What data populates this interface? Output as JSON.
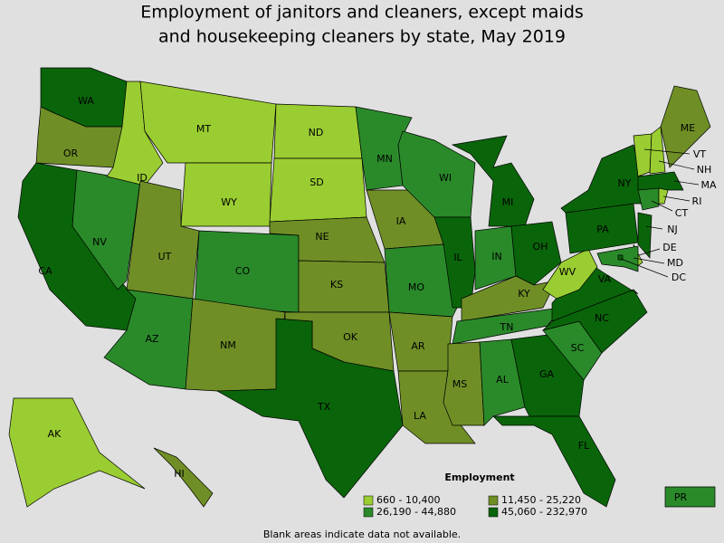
{
  "title_lines": [
    "Employment of janitors and cleaners, except maids",
    "and housekeeping cleaners by state, May 2019"
  ],
  "legend": {
    "title": "Employment",
    "items": [
      {
        "label": "660 - 10,400",
        "color": "#9acd32"
      },
      {
        "label": "11,450 - 25,220",
        "color": "#6f8f26"
      },
      {
        "label": "26,190 - 44,880",
        "color": "#2a8a2a"
      },
      {
        "label": "45,060 - 232,970",
        "color": "#0a650a"
      }
    ]
  },
  "note": "Blank areas indicate data not available.",
  "states": [
    {
      "label": "WA",
      "color": "#0a650a"
    },
    {
      "label": "OR",
      "color": "#6f8f26"
    },
    {
      "label": "CA",
      "color": "#0a650a"
    },
    {
      "label": "NV",
      "color": "#2a8a2a"
    },
    {
      "label": "ID",
      "color": "#9acd32"
    },
    {
      "label": "MT",
      "color": "#9acd32"
    },
    {
      "label": "WY",
      "color": "#9acd32"
    },
    {
      "label": "UT",
      "color": "#6f8f26"
    },
    {
      "label": "AZ",
      "color": "#2a8a2a"
    },
    {
      "label": "CO",
      "color": "#2a8a2a"
    },
    {
      "label": "NM",
      "color": "#6f8f26"
    },
    {
      "label": "ND",
      "color": "#9acd32"
    },
    {
      "label": "SD",
      "color": "#9acd32"
    },
    {
      "label": "NE",
      "color": "#6f8f26"
    },
    {
      "label": "KS",
      "color": "#6f8f26"
    },
    {
      "label": "OK",
      "color": "#6f8f26"
    },
    {
      "label": "TX",
      "color": "#0a650a"
    },
    {
      "label": "MN",
      "color": "#2a8a2a"
    },
    {
      "label": "IA",
      "color": "#6f8f26"
    },
    {
      "label": "MO",
      "color": "#2a8a2a"
    },
    {
      "label": "AR",
      "color": "#6f8f26"
    },
    {
      "label": "LA",
      "color": "#6f8f26"
    },
    {
      "label": "WI",
      "color": "#2a8a2a"
    },
    {
      "label": "IL",
      "color": "#0a650a"
    },
    {
      "label": "MI",
      "color": "#0a650a"
    },
    {
      "label": "IN",
      "color": "#2a8a2a"
    },
    {
      "label": "OH",
      "color": "#0a650a"
    },
    {
      "label": "KY",
      "color": "#6f8f26"
    },
    {
      "label": "TN",
      "color": "#2a8a2a"
    },
    {
      "label": "MS",
      "color": "#6f8f26"
    },
    {
      "label": "AL",
      "color": "#2a8a2a"
    },
    {
      "label": "GA",
      "color": "#0a650a"
    },
    {
      "label": "FL",
      "color": "#0a650a"
    },
    {
      "label": "SC",
      "color": "#2a8a2a"
    },
    {
      "label": "NC",
      "color": "#0a650a"
    },
    {
      "label": "VA",
      "color": "#0a650a"
    },
    {
      "label": "WV",
      "color": "#9acd32"
    },
    {
      "label": "PA",
      "color": "#0a650a"
    },
    {
      "label": "NY",
      "color": "#0a650a"
    },
    {
      "label": "VT",
      "color": "#9acd32"
    },
    {
      "label": "NH",
      "color": "#9acd32"
    },
    {
      "label": "ME",
      "color": "#6f8f26"
    },
    {
      "label": "MA",
      "color": "#0a650a"
    },
    {
      "label": "CT",
      "color": "#2a8a2a"
    },
    {
      "label": "RI",
      "color": "#9acd32"
    },
    {
      "label": "NJ",
      "color": "#0a650a"
    },
    {
      "label": "DE",
      "color": "#9acd32"
    },
    {
      "label": "MD",
      "color": "#2a8a2a"
    },
    {
      "label": "DC",
      "color": "#0a650a"
    },
    {
      "label": "AK",
      "color": "#9acd32"
    },
    {
      "label": "HI",
      "color": "#6f8f26"
    },
    {
      "label": "PR",
      "color": "#2a8a2a"
    }
  ]
}
